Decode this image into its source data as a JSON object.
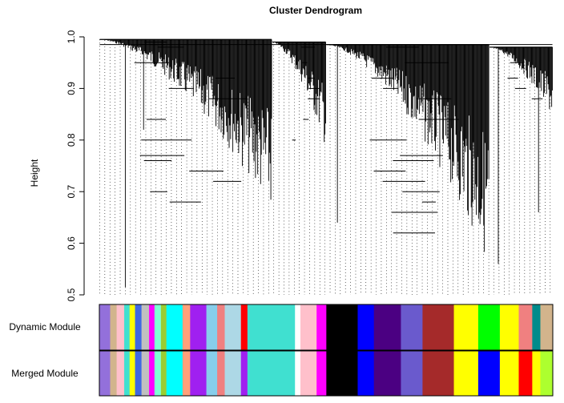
{
  "chart_data": {
    "type": "dendrogram",
    "title": "Cluster Dendrogram",
    "ylabel": "Height",
    "ylim": [
      0.5,
      1.0
    ],
    "yticks": [
      0.5,
      0.6,
      0.7,
      0.8,
      0.9,
      1.0
    ],
    "ytick_labels": [
      "0.5",
      "0.6",
      "0.7",
      "0.8",
      "0.9",
      "1.0"
    ],
    "n_leaves": 620,
    "merge_heights": [
      0.99,
      0.985,
      0.98,
      0.95,
      0.92,
      0.9,
      0.88,
      0.84,
      0.8,
      0.77,
      0.76,
      0.74,
      0.72,
      0.7,
      0.68,
      0.66,
      0.62
    ],
    "branches": [
      {
        "start": 0.0,
        "end": 0.38,
        "top": 0.995,
        "bottom": 0.66
      },
      {
        "start": 0.38,
        "end": 0.5,
        "top": 0.99,
        "bottom": 0.78
      },
      {
        "start": 0.5,
        "end": 0.86,
        "top": 0.985,
        "bottom": 0.56
      },
      {
        "start": 0.86,
        "end": 1.0,
        "top": 0.98,
        "bottom": 0.84
      }
    ],
    "module_rows": [
      "Dynamic Module",
      "Merged Module"
    ],
    "dynamic_modules": [
      {
        "color": "#9370db",
        "share": 0.02
      },
      {
        "color": "#d2b48c",
        "share": 0.012
      },
      {
        "color": "#ffc0cb",
        "share": 0.014
      },
      {
        "color": "#40e0d0",
        "share": 0.01
      },
      {
        "color": "#ffff00",
        "share": 0.01
      },
      {
        "color": "#4169e1",
        "share": 0.012
      },
      {
        "color": "#c0c0c0",
        "share": 0.014
      },
      {
        "color": "#ff00ff",
        "share": 0.01
      },
      {
        "color": "#7fffd4",
        "share": 0.012
      },
      {
        "color": "#9acd32",
        "share": 0.01
      },
      {
        "color": "#00ffff",
        "share": 0.03
      },
      {
        "color": "#ffa07a",
        "share": 0.014
      },
      {
        "color": "#a020f0",
        "share": 0.03
      },
      {
        "color": "#87ceeb",
        "share": 0.02
      },
      {
        "color": "#f08080",
        "share": 0.014
      },
      {
        "color": "#add8e6",
        "share": 0.03
      },
      {
        "color": "#ff0000",
        "share": 0.012
      },
      {
        "color": "#40e0d0",
        "share": 0.088
      },
      {
        "color": "#ffffff",
        "share": 0.01
      },
      {
        "color": "#ffc0cb",
        "share": 0.03
      },
      {
        "color": "#ff00ff",
        "share": 0.018
      },
      {
        "color": "#000000",
        "share": 0.058
      },
      {
        "color": "#0000ff",
        "share": 0.03
      },
      {
        "color": "#4b0082",
        "share": 0.05
      },
      {
        "color": "#6a5acd",
        "share": 0.04
      },
      {
        "color": "#a52a2a",
        "share": 0.058
      },
      {
        "color": "#ffff00",
        "share": 0.045
      },
      {
        "color": "#00ff00",
        "share": 0.04
      },
      {
        "color": "#ffff00",
        "share": 0.035
      },
      {
        "color": "#f08080",
        "share": 0.025
      },
      {
        "color": "#008b8b",
        "share": 0.015
      },
      {
        "color": "#d2b48c",
        "share": 0.023
      }
    ],
    "merged_modules": [
      {
        "color": "#9370db",
        "share": 0.02
      },
      {
        "color": "#d2b48c",
        "share": 0.012
      },
      {
        "color": "#ffc0cb",
        "share": 0.014
      },
      {
        "color": "#40e0d0",
        "share": 0.01
      },
      {
        "color": "#ffff00",
        "share": 0.01
      },
      {
        "color": "#4169e1",
        "share": 0.012
      },
      {
        "color": "#c0c0c0",
        "share": 0.014
      },
      {
        "color": "#ff00ff",
        "share": 0.01
      },
      {
        "color": "#7fffd4",
        "share": 0.012
      },
      {
        "color": "#9acd32",
        "share": 0.01
      },
      {
        "color": "#00ffff",
        "share": 0.03
      },
      {
        "color": "#ffa07a",
        "share": 0.014
      },
      {
        "color": "#a020f0",
        "share": 0.03
      },
      {
        "color": "#87ceeb",
        "share": 0.02
      },
      {
        "color": "#f08080",
        "share": 0.014
      },
      {
        "color": "#add8e6",
        "share": 0.03
      },
      {
        "color": "#a020f0",
        "share": 0.012
      },
      {
        "color": "#40e0d0",
        "share": 0.088
      },
      {
        "color": "#ffffff",
        "share": 0.01
      },
      {
        "color": "#ffc0cb",
        "share": 0.03
      },
      {
        "color": "#ff00ff",
        "share": 0.018
      },
      {
        "color": "#000000",
        "share": 0.058
      },
      {
        "color": "#0000ff",
        "share": 0.03
      },
      {
        "color": "#4b0082",
        "share": 0.05
      },
      {
        "color": "#6a5acd",
        "share": 0.04
      },
      {
        "color": "#a52a2a",
        "share": 0.058
      },
      {
        "color": "#ffff00",
        "share": 0.045
      },
      {
        "color": "#0000ff",
        "share": 0.04
      },
      {
        "color": "#ffff00",
        "share": 0.035
      },
      {
        "color": "#ff0000",
        "share": 0.025
      },
      {
        "color": "#ffff00",
        "share": 0.015
      },
      {
        "color": "#adff2f",
        "share": 0.023
      }
    ]
  }
}
